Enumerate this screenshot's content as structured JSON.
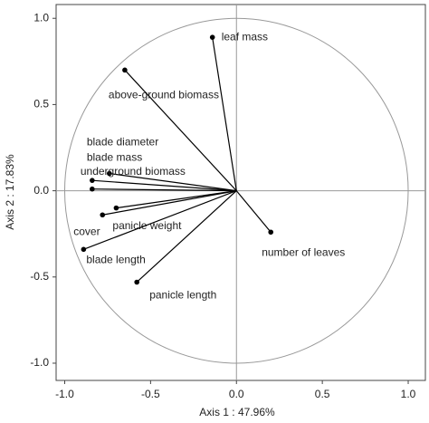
{
  "chart_data": {
    "type": "scatter",
    "x_label": "Axis 1 : 47.96%",
    "y_label": "Axis 2 : 17.83%",
    "labels": [
      "leaf mass",
      "above-ground biomass",
      "blade diameter",
      "blade mass",
      "underground biomass",
      "cover",
      "panicle weight",
      "blade length",
      "panicle length",
      "number of  leaves"
    ],
    "x": [
      -0.14,
      -0.65,
      -0.74,
      -0.84,
      -0.84,
      -0.78,
      -0.7,
      -0.89,
      -0.58,
      0.2
    ],
    "values": [
      0.89,
      0.7,
      0.1,
      0.06,
      0.01,
      -0.14,
      -0.1,
      -0.34,
      -0.53,
      -0.24
    ],
    "color": "#000000",
    "xlim": [
      -1.05,
      1.1
    ],
    "ylim": [
      -1.1,
      1.08
    ],
    "xticks": [
      {
        "value": -1,
        "label": "-1.0"
      },
      {
        "value": -0.5,
        "label": "-0.5"
      },
      {
        "value": 0,
        "label": "0.0"
      },
      {
        "value": 0.5,
        "label": "0.5"
      },
      {
        "value": 1,
        "label": "1.0"
      }
    ],
    "yticks": [
      {
        "value": -1,
        "label": "-1.0"
      },
      {
        "value": -0.5,
        "label": "-0.5"
      },
      {
        "value": 0,
        "label": "0.0"
      },
      {
        "value": 0.5,
        "label": "0.5"
      },
      {
        "value": 1,
        "label": "1.0"
      }
    ]
  }
}
